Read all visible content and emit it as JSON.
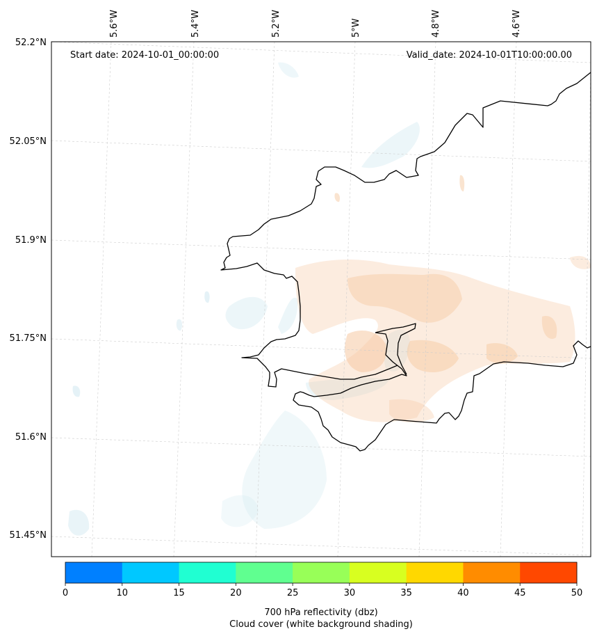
{
  "map": {
    "start_date": "Start date: 2024-10-01_00:00:00",
    "valid_date": "Valid_date: 2024-10-01T10:00:00.00",
    "lon_ticks": [
      "5.6°W",
      "5.4°W",
      "5.2°W",
      "5°W",
      "4.8°W",
      "4.6°W"
    ],
    "lat_ticks": [
      "52.2°N",
      "52.05°N",
      "51.9°N",
      "51.75°N",
      "51.6°N",
      "51.45°N"
    ],
    "gridlines": true,
    "coastline_color": "#000000",
    "reflectivity_shading": "light orange tint over south Pembrokeshire",
    "cloud_shading": "light blue tint (white background shading)"
  },
  "colorbar": {
    "ticks": [
      "0",
      "10",
      "15",
      "20",
      "25",
      "30",
      "35",
      "40",
      "45",
      "50"
    ],
    "colors": [
      "#0080ff",
      "#00c8ff",
      "#20ffd2",
      "#60ff90",
      "#98ff58",
      "#d8ff20",
      "#ffd800",
      "#ff8c00",
      "#ff4800"
    ],
    "label_line1": "700 hPa reflectivity (dbz)",
    "label_line2": "Cloud cover (white background shading)"
  }
}
